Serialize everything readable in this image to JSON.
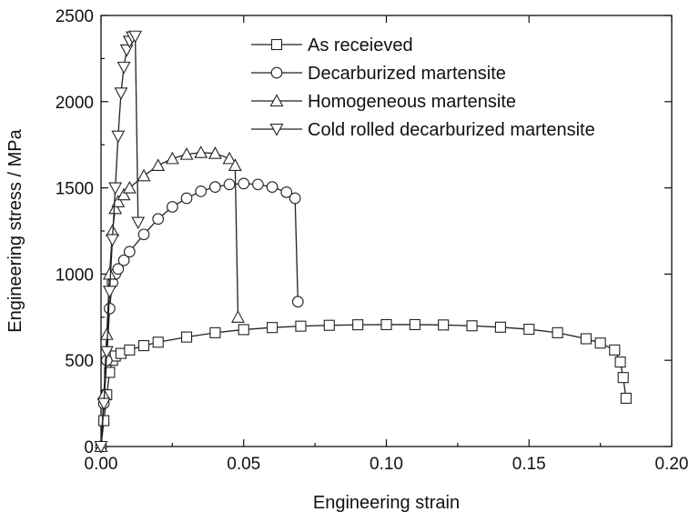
{
  "chart_data": {
    "type": "line",
    "xlabel": "Engineering strain",
    "ylabel": "Engineering stress / MPa",
    "xlim": [
      0.0,
      0.2
    ],
    "ylim": [
      0,
      2500
    ],
    "xticks": [
      "0.00",
      "0.05",
      "0.10",
      "0.15",
      "0.20"
    ],
    "xtick_values": [
      0.0,
      0.05,
      0.1,
      0.15,
      0.2
    ],
    "yticks": [
      "0",
      "500",
      "1000",
      "1500",
      "2000",
      "2500"
    ],
    "ytick_values": [
      0,
      500,
      1000,
      1500,
      2000,
      2500
    ],
    "grid": false,
    "legend_position": "top-right",
    "series": [
      {
        "name": "As receieved",
        "marker": "square",
        "x": [
          0.0,
          0.001,
          0.002,
          0.003,
          0.004,
          0.005,
          0.007,
          0.01,
          0.015,
          0.02,
          0.03,
          0.04,
          0.05,
          0.06,
          0.07,
          0.08,
          0.09,
          0.1,
          0.11,
          0.12,
          0.13,
          0.14,
          0.15,
          0.16,
          0.17,
          0.175,
          0.18,
          0.182,
          0.183,
          0.184
        ],
        "y": [
          0,
          150,
          300,
          430,
          500,
          525,
          540,
          560,
          585,
          605,
          635,
          660,
          678,
          690,
          698,
          703,
          706,
          707,
          707,
          705,
          700,
          692,
          680,
          660,
          625,
          600,
          560,
          490,
          400,
          280
        ]
      },
      {
        "name": "Decarburized martensite",
        "marker": "circle",
        "x": [
          0.0,
          0.001,
          0.002,
          0.003,
          0.004,
          0.005,
          0.006,
          0.008,
          0.01,
          0.015,
          0.02,
          0.025,
          0.03,
          0.035,
          0.04,
          0.045,
          0.05,
          0.055,
          0.06,
          0.065,
          0.068,
          0.069
        ],
        "y": [
          0,
          250,
          500,
          800,
          950,
          1000,
          1030,
          1080,
          1130,
          1230,
          1320,
          1390,
          1440,
          1480,
          1505,
          1520,
          1525,
          1520,
          1505,
          1475,
          1440,
          840
        ]
      },
      {
        "name": "Homogeneous martensite",
        "marker": "triangle-up",
        "x": [
          0.0,
          0.001,
          0.002,
          0.003,
          0.004,
          0.005,
          0.006,
          0.008,
          0.01,
          0.015,
          0.02,
          0.025,
          0.03,
          0.035,
          0.04,
          0.045,
          0.047,
          0.048
        ],
        "y": [
          0,
          300,
          650,
          1000,
          1250,
          1380,
          1420,
          1460,
          1500,
          1570,
          1630,
          1670,
          1695,
          1705,
          1700,
          1670,
          1630,
          750
        ]
      },
      {
        "name": "Cold rolled decarburized martensite",
        "marker": "triangle-down",
        "x": [
          0.0,
          0.001,
          0.002,
          0.003,
          0.004,
          0.005,
          0.006,
          0.007,
          0.008,
          0.009,
          0.01,
          0.011,
          0.012,
          0.013
        ],
        "y": [
          0,
          250,
          550,
          900,
          1200,
          1500,
          1800,
          2050,
          2200,
          2300,
          2350,
          2375,
          2380,
          1300
        ]
      }
    ]
  }
}
